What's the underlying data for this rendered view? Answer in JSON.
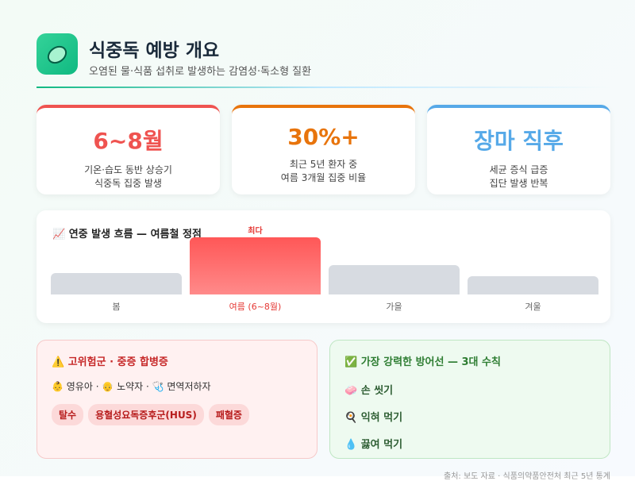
{
  "header": {
    "title": "식중독 예방 개요",
    "subtitle": "오염된 물·식품 섭취로 발생하는 감염성·독소형 질환"
  },
  "stats": [
    {
      "value": "6~8월",
      "lines": [
        "기온·습도 동반 상승기",
        "식중독 집중 발생"
      ],
      "color": "#ef5350"
    },
    {
      "value": "30%+",
      "lines": [
        "최근 5년 환자 중",
        "여름 3개월 집중 비율"
      ],
      "color": "#e8740c"
    },
    {
      "value": "장마 직후",
      "lines": [
        "세균 증식 급증",
        "집단 발생 반복"
      ],
      "color": "#56a9e8"
    }
  ],
  "season_chart": {
    "title": "📈 연중 발생 흐름 — 여름철 정점",
    "peak_label": "최다",
    "categories": [
      "봄",
      "여름 (6~8월)",
      "가을",
      "겨울"
    ],
    "values": [
      38,
      100,
      52,
      32
    ]
  },
  "risk": {
    "title": "⚠️ 고위험군 · 중증 합병증",
    "groups": "👶 영유아 · 👴 노약자 · 🩺 면역저하자",
    "chips": [
      "탈수",
      "용혈성요독증후군(HUS)",
      "패혈증"
    ]
  },
  "defense": {
    "title": "✅ 가장 강력한 방어선 — 3대 수칙",
    "items": [
      "🧼  손 씻기",
      "🍳  익혀 먹기",
      "💧  끓여 먹기"
    ]
  },
  "footer": "출처: 보도 자료 · 식품의약품안전처 최근 5년 통계"
}
